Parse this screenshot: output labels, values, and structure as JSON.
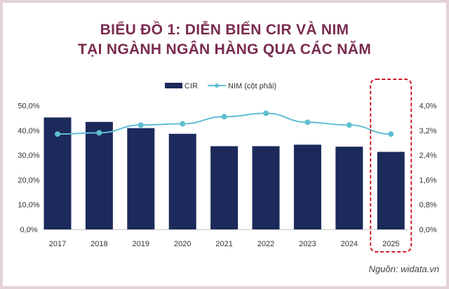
{
  "title_line1": "BIỂU ĐỒ 1: DIỄN BIẾN CIR VÀ NIM",
  "title_line2": "TẠI NGÀNH NGÂN HÀNG QUA CÁC NĂM",
  "source": "Nguồn: widata.vn",
  "chart_data": {
    "type": "bar+line",
    "categories": [
      "2017",
      "2018",
      "2019",
      "2020",
      "2021",
      "2022",
      "2023",
      "2024",
      "2025"
    ],
    "series": [
      {
        "name": "CIR",
        "type": "bar",
        "axis": "left",
        "color": "#1b2a5a",
        "values": [
          45.2,
          43.4,
          40.9,
          38.6,
          33.6,
          33.6,
          34.2,
          33.4,
          31.3
        ]
      },
      {
        "name": "NIM (cột phải)",
        "type": "line",
        "axis": "right",
        "color": "#5fbfd1",
        "values": [
          3.08,
          3.12,
          3.37,
          3.41,
          3.64,
          3.75,
          3.46,
          3.37,
          3.08
        ]
      }
    ],
    "left_axis": {
      "range": [
        0,
        50
      ],
      "ticks": [
        "0,0%",
        "10,0%",
        "20,0%",
        "30,0%",
        "40,0%",
        "50,0%"
      ]
    },
    "right_axis": {
      "range": [
        0,
        4
      ],
      "ticks": [
        "0,0%",
        "0,8%",
        "1,6%",
        "2,4%",
        "3,2%",
        "4,0%"
      ]
    },
    "legend": "top-center",
    "highlight": {
      "category": "2025",
      "style": "dashed red box",
      "color": "#d11f2a"
    },
    "grid": false
  }
}
